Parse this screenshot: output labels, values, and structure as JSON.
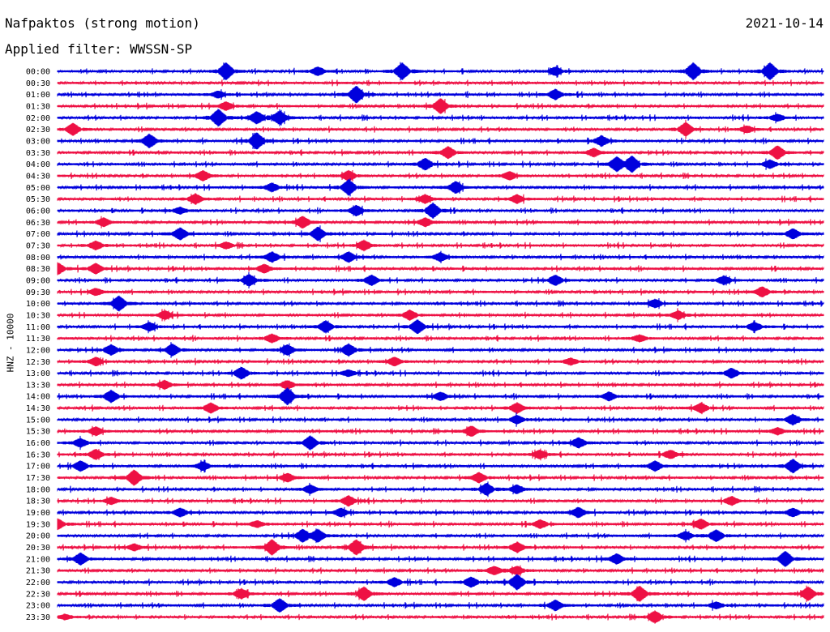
{
  "header": {
    "title": "Nafpaktos (strong motion)",
    "date": "2021-10-14",
    "filter": "Applied filter: WWSSN-SP"
  },
  "chart_data": {
    "type": "line",
    "title": "Nafpaktos (strong motion)",
    "ylabel": "HNZ - 10000",
    "xlabel": "",
    "colors": {
      "even_rows": "#0000dd",
      "odd_rows": "#ee1144"
    },
    "rows": [
      "00:00",
      "00:30",
      "01:00",
      "01:30",
      "02:00",
      "02:30",
      "03:00",
      "03:30",
      "04:00",
      "04:30",
      "05:00",
      "05:30",
      "06:00",
      "06:30",
      "07:00",
      "07:30",
      "08:00",
      "08:30",
      "09:00",
      "09:30",
      "10:00",
      "10:30",
      "11:00",
      "11:30",
      "12:00",
      "12:30",
      "13:00",
      "13:30",
      "14:00",
      "14:30",
      "15:00",
      "15:30",
      "16:00",
      "16:30",
      "17:00",
      "17:30",
      "18:00",
      "18:30",
      "19:00",
      "19:30",
      "20:00",
      "20:30",
      "21:00",
      "21:30",
      "22:00",
      "22:30",
      "23:00",
      "23:30"
    ],
    "row_duration_minutes": 30,
    "events": [
      {
        "row": "00:00",
        "t": 0.22,
        "amp": 1.0
      },
      {
        "row": "00:00",
        "t": 0.34,
        "amp": 0.5
      },
      {
        "row": "00:00",
        "t": 0.45,
        "amp": 1.0
      },
      {
        "row": "00:00",
        "t": 0.65,
        "amp": 0.5
      },
      {
        "row": "00:00",
        "t": 0.83,
        "amp": 1.0
      },
      {
        "row": "00:00",
        "t": 0.93,
        "amp": 1.0
      },
      {
        "row": "01:00",
        "t": 0.39,
        "amp": 1.0
      },
      {
        "row": "01:00",
        "t": 0.65,
        "amp": 0.6
      },
      {
        "row": "01:00",
        "t": 0.21,
        "amp": 0.4
      },
      {
        "row": "01:30",
        "t": 0.22,
        "amp": 0.5
      },
      {
        "row": "01:30",
        "t": 0.5,
        "amp": 0.9
      },
      {
        "row": "02:00",
        "t": 0.21,
        "amp": 1.0
      },
      {
        "row": "02:00",
        "t": 0.26,
        "amp": 0.7
      },
      {
        "row": "02:00",
        "t": 0.29,
        "amp": 0.8
      },
      {
        "row": "02:00",
        "t": 0.94,
        "amp": 0.4
      },
      {
        "row": "02:30",
        "t": 0.02,
        "amp": 0.7
      },
      {
        "row": "02:30",
        "t": 0.82,
        "amp": 0.8
      },
      {
        "row": "02:30",
        "t": 0.9,
        "amp": 0.4
      },
      {
        "row": "03:00",
        "t": 0.12,
        "amp": 0.8
      },
      {
        "row": "03:00",
        "t": 0.26,
        "amp": 1.0
      },
      {
        "row": "03:00",
        "t": 0.71,
        "amp": 0.6
      },
      {
        "row": "03:30",
        "t": 0.51,
        "amp": 0.7
      },
      {
        "row": "03:30",
        "t": 0.7,
        "amp": 0.5
      },
      {
        "row": "03:30",
        "t": 0.94,
        "amp": 0.8
      },
      {
        "row": "04:00",
        "t": 0.48,
        "amp": 0.7
      },
      {
        "row": "04:00",
        "t": 0.73,
        "amp": 0.8
      },
      {
        "row": "04:00",
        "t": 0.75,
        "amp": 0.9
      },
      {
        "row": "04:00",
        "t": 0.93,
        "amp": 0.5
      },
      {
        "row": "04:30",
        "t": 0.19,
        "amp": 0.6
      },
      {
        "row": "04:30",
        "t": 0.38,
        "amp": 0.6
      },
      {
        "row": "04:30",
        "t": 0.59,
        "amp": 0.5
      },
      {
        "row": "05:00",
        "t": 0.38,
        "amp": 0.9
      },
      {
        "row": "05:00",
        "t": 0.52,
        "amp": 0.7
      },
      {
        "row": "05:00",
        "t": 0.28,
        "amp": 0.5
      },
      {
        "row": "05:30",
        "t": 0.18,
        "amp": 0.6
      },
      {
        "row": "05:30",
        "t": 0.48,
        "amp": 0.5
      },
      {
        "row": "05:30",
        "t": 0.6,
        "amp": 0.5
      },
      {
        "row": "06:00",
        "t": 0.49,
        "amp": 0.9
      },
      {
        "row": "06:00",
        "t": 0.39,
        "amp": 0.6
      },
      {
        "row": "06:00",
        "t": 0.16,
        "amp": 0.4
      },
      {
        "row": "06:30",
        "t": 0.06,
        "amp": 0.5
      },
      {
        "row": "06:30",
        "t": 0.32,
        "amp": 0.7
      },
      {
        "row": "06:30",
        "t": 0.48,
        "amp": 0.5
      },
      {
        "row": "07:00",
        "t": 0.16,
        "amp": 0.7
      },
      {
        "row": "07:00",
        "t": 0.34,
        "amp": 0.8
      },
      {
        "row": "07:00",
        "t": 0.96,
        "amp": 0.6
      },
      {
        "row": "07:30",
        "t": 0.05,
        "amp": 0.5
      },
      {
        "row": "07:30",
        "t": 0.22,
        "amp": 0.4
      },
      {
        "row": "07:30",
        "t": 0.4,
        "amp": 0.6
      },
      {
        "row": "08:00",
        "t": 0.28,
        "amp": 0.6
      },
      {
        "row": "08:00",
        "t": 0.38,
        "amp": 0.6
      },
      {
        "row": "08:00",
        "t": 0.5,
        "amp": 0.5
      },
      {
        "row": "08:30",
        "t": 0.0,
        "amp": 0.7
      },
      {
        "row": "08:30",
        "t": 0.05,
        "amp": 0.6
      },
      {
        "row": "08:30",
        "t": 0.27,
        "amp": 0.5
      },
      {
        "row": "09:00",
        "t": 0.25,
        "amp": 0.7
      },
      {
        "row": "09:00",
        "t": 0.41,
        "amp": 0.6
      },
      {
        "row": "09:00",
        "t": 0.65,
        "amp": 0.6
      },
      {
        "row": "09:00",
        "t": 0.87,
        "amp": 0.5
      },
      {
        "row": "09:30",
        "t": 0.05,
        "amp": 0.4
      },
      {
        "row": "09:30",
        "t": 0.92,
        "amp": 0.6
      },
      {
        "row": "10:00",
        "t": 0.08,
        "amp": 0.9
      },
      {
        "row": "10:00",
        "t": 0.78,
        "amp": 0.5
      },
      {
        "row": "10:30",
        "t": 0.14,
        "amp": 0.5
      },
      {
        "row": "10:30",
        "t": 0.46,
        "amp": 0.6
      },
      {
        "row": "10:30",
        "t": 0.81,
        "amp": 0.5
      },
      {
        "row": "11:00",
        "t": 0.12,
        "amp": 0.5
      },
      {
        "row": "11:00",
        "t": 0.35,
        "amp": 0.7
      },
      {
        "row": "11:00",
        "t": 0.47,
        "amp": 0.8
      },
      {
        "row": "11:00",
        "t": 0.91,
        "amp": 0.5
      },
      {
        "row": "11:30",
        "t": 0.28,
        "amp": 0.5
      },
      {
        "row": "11:30",
        "t": 0.76,
        "amp": 0.4
      },
      {
        "row": "12:00",
        "t": 0.07,
        "amp": 0.6
      },
      {
        "row": "12:00",
        "t": 0.15,
        "amp": 0.7
      },
      {
        "row": "12:00",
        "t": 0.3,
        "amp": 0.6
      },
      {
        "row": "12:00",
        "t": 0.38,
        "amp": 0.7
      },
      {
        "row": "12:30",
        "t": 0.05,
        "amp": 0.5
      },
      {
        "row": "12:30",
        "t": 0.44,
        "amp": 0.5
      },
      {
        "row": "12:30",
        "t": 0.67,
        "amp": 0.4
      },
      {
        "row": "13:00",
        "t": 0.24,
        "amp": 0.7
      },
      {
        "row": "13:00",
        "t": 0.38,
        "amp": 0.4
      },
      {
        "row": "13:00",
        "t": 0.88,
        "amp": 0.6
      },
      {
        "row": "13:30",
        "t": 0.14,
        "amp": 0.5
      },
      {
        "row": "13:30",
        "t": 0.3,
        "amp": 0.5
      },
      {
        "row": "14:00",
        "t": 0.07,
        "amp": 0.7
      },
      {
        "row": "14:00",
        "t": 0.3,
        "amp": 1.0
      },
      {
        "row": "14:00",
        "t": 0.5,
        "amp": 0.5
      },
      {
        "row": "14:00",
        "t": 0.72,
        "amp": 0.5
      },
      {
        "row": "14:30",
        "t": 0.2,
        "amp": 0.6
      },
      {
        "row": "14:30",
        "t": 0.6,
        "amp": 0.6
      },
      {
        "row": "14:30",
        "t": 0.84,
        "amp": 0.6
      },
      {
        "row": "15:00",
        "t": 0.6,
        "amp": 0.5
      },
      {
        "row": "15:00",
        "t": 0.96,
        "amp": 0.6
      },
      {
        "row": "15:30",
        "t": 0.05,
        "amp": 0.5
      },
      {
        "row": "15:30",
        "t": 0.54,
        "amp": 0.6
      },
      {
        "row": "15:30",
        "t": 0.94,
        "amp": 0.4
      },
      {
        "row": "16:00",
        "t": 0.03,
        "amp": 0.5
      },
      {
        "row": "16:00",
        "t": 0.33,
        "amp": 0.8
      },
      {
        "row": "16:00",
        "t": 0.68,
        "amp": 0.6
      },
      {
        "row": "16:30",
        "t": 0.05,
        "amp": 0.6
      },
      {
        "row": "16:30",
        "t": 0.63,
        "amp": 0.5
      },
      {
        "row": "16:30",
        "t": 0.8,
        "amp": 0.5
      },
      {
        "row": "17:00",
        "t": 0.03,
        "amp": 0.6
      },
      {
        "row": "17:00",
        "t": 0.19,
        "amp": 0.5
      },
      {
        "row": "17:00",
        "t": 0.78,
        "amp": 0.6
      },
      {
        "row": "17:00",
        "t": 0.96,
        "amp": 0.8
      },
      {
        "row": "17:30",
        "t": 0.1,
        "amp": 0.9
      },
      {
        "row": "17:30",
        "t": 0.3,
        "amp": 0.5
      },
      {
        "row": "17:30",
        "t": 0.55,
        "amp": 0.6
      },
      {
        "row": "18:00",
        "t": 0.33,
        "amp": 0.5
      },
      {
        "row": "18:00",
        "t": 0.56,
        "amp": 0.7
      },
      {
        "row": "18:00",
        "t": 0.6,
        "amp": 0.5
      },
      {
        "row": "18:30",
        "t": 0.07,
        "amp": 0.4
      },
      {
        "row": "18:30",
        "t": 0.38,
        "amp": 0.6
      },
      {
        "row": "18:30",
        "t": 0.88,
        "amp": 0.5
      },
      {
        "row": "19:00",
        "t": 0.16,
        "amp": 0.5
      },
      {
        "row": "19:00",
        "t": 0.37,
        "amp": 0.5
      },
      {
        "row": "19:00",
        "t": 0.68,
        "amp": 0.6
      },
      {
        "row": "19:00",
        "t": 0.96,
        "amp": 0.5
      },
      {
        "row": "19:30",
        "t": 0.0,
        "amp": 0.6
      },
      {
        "row": "19:30",
        "t": 0.26,
        "amp": 0.4
      },
      {
        "row": "19:30",
        "t": 0.63,
        "amp": 0.5
      },
      {
        "row": "19:30",
        "t": 0.84,
        "amp": 0.6
      },
      {
        "row": "20:00",
        "t": 0.32,
        "amp": 0.7
      },
      {
        "row": "20:00",
        "t": 0.34,
        "amp": 0.7
      },
      {
        "row": "20:00",
        "t": 0.82,
        "amp": 0.5
      },
      {
        "row": "20:00",
        "t": 0.86,
        "amp": 0.7
      },
      {
        "row": "20:30",
        "t": 0.1,
        "amp": 0.4
      },
      {
        "row": "20:30",
        "t": 0.28,
        "amp": 0.9
      },
      {
        "row": "20:30",
        "t": 0.39,
        "amp": 0.9
      },
      {
        "row": "20:30",
        "t": 0.6,
        "amp": 0.6
      },
      {
        "row": "21:00",
        "t": 0.03,
        "amp": 0.7
      },
      {
        "row": "21:00",
        "t": 0.73,
        "amp": 0.6
      },
      {
        "row": "21:00",
        "t": 0.95,
        "amp": 0.9
      },
      {
        "row": "21:30",
        "t": 0.57,
        "amp": 0.5
      },
      {
        "row": "21:30",
        "t": 0.6,
        "amp": 0.5
      },
      {
        "row": "22:00",
        "t": 0.44,
        "amp": 0.5
      },
      {
        "row": "22:00",
        "t": 0.54,
        "amp": 0.6
      },
      {
        "row": "22:00",
        "t": 0.6,
        "amp": 0.9
      },
      {
        "row": "22:30",
        "t": 0.24,
        "amp": 0.6
      },
      {
        "row": "22:30",
        "t": 0.4,
        "amp": 0.8
      },
      {
        "row": "22:30",
        "t": 0.76,
        "amp": 0.9
      },
      {
        "row": "22:30",
        "t": 0.98,
        "amp": 0.8
      },
      {
        "row": "23:00",
        "t": 0.29,
        "amp": 0.8
      },
      {
        "row": "23:00",
        "t": 0.65,
        "amp": 0.6
      },
      {
        "row": "23:00",
        "t": 0.86,
        "amp": 0.4
      },
      {
        "row": "23:30",
        "t": 0.78,
        "amp": 0.7
      },
      {
        "row": "23:30",
        "t": 0.01,
        "amp": 0.3
      }
    ]
  }
}
